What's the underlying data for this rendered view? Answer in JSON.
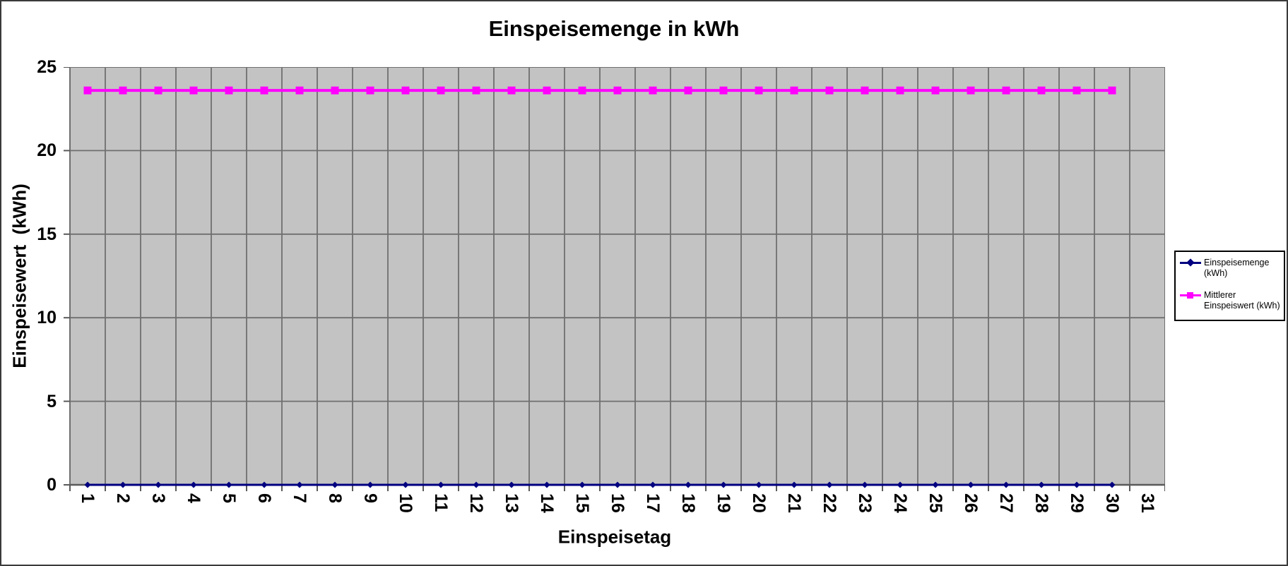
{
  "chart_data": {
    "type": "line",
    "title": "Einspeisemenge in kWh",
    "xlabel": "Einspeisetag",
    "ylabel": "Einspeisewert  (kWh)",
    "x_categories": [
      "1",
      "2",
      "3",
      "4",
      "5",
      "6",
      "7",
      "8",
      "9",
      "10",
      "11",
      "12",
      "13",
      "14",
      "15",
      "16",
      "17",
      "18",
      "19",
      "20",
      "21",
      "22",
      "23",
      "24",
      "25",
      "26",
      "27",
      "28",
      "29",
      "30",
      "31"
    ],
    "ylim": [
      0,
      25
    ],
    "y_ticks": [
      0,
      5,
      10,
      15,
      20,
      25
    ],
    "grid": {
      "horizontal": true,
      "vertical": true,
      "color": "#6f6f6f"
    },
    "plot_background": "#c3c3c3",
    "axis_color": "#5a5a5a",
    "legend": {
      "position": "right",
      "background": "#ffffff",
      "border_color": "#000000"
    },
    "series": [
      {
        "name": "Einspeisemenge (kWh)",
        "legend_lines": [
          "Einspeisemenge",
          "(kWh)"
        ],
        "color": "#000080",
        "marker": "diamond",
        "line_width": 3,
        "days": [
          1,
          2,
          3,
          4,
          5,
          6,
          7,
          8,
          9,
          10,
          11,
          12,
          13,
          14,
          15,
          16,
          17,
          18,
          19,
          20,
          21,
          22,
          23,
          24,
          25,
          26,
          27,
          28,
          29,
          30
        ],
        "values": [
          0,
          0,
          0,
          0,
          0,
          0,
          0,
          0,
          0,
          0,
          0,
          0,
          0,
          0,
          0,
          0,
          0,
          0,
          0,
          0,
          0,
          0,
          0,
          0,
          0,
          0,
          0,
          0,
          0,
          0
        ]
      },
      {
        "name": "Mittlerer Einspeiswert (kWh)",
        "legend_lines": [
          "Mittlerer",
          "Einspeiswert (kWh)"
        ],
        "color": "#ff00ff",
        "marker": "square",
        "line_width": 4,
        "days": [
          1,
          2,
          3,
          4,
          5,
          6,
          7,
          8,
          9,
          10,
          11,
          12,
          13,
          14,
          15,
          16,
          17,
          18,
          19,
          20,
          21,
          22,
          23,
          24,
          25,
          26,
          27,
          28,
          29,
          30
        ],
        "values": [
          23.6,
          23.6,
          23.6,
          23.6,
          23.6,
          23.6,
          23.6,
          23.6,
          23.6,
          23.6,
          23.6,
          23.6,
          23.6,
          23.6,
          23.6,
          23.6,
          23.6,
          23.6,
          23.6,
          23.6,
          23.6,
          23.6,
          23.6,
          23.6,
          23.6,
          23.6,
          23.6,
          23.6,
          23.6,
          23.6
        ]
      }
    ]
  }
}
